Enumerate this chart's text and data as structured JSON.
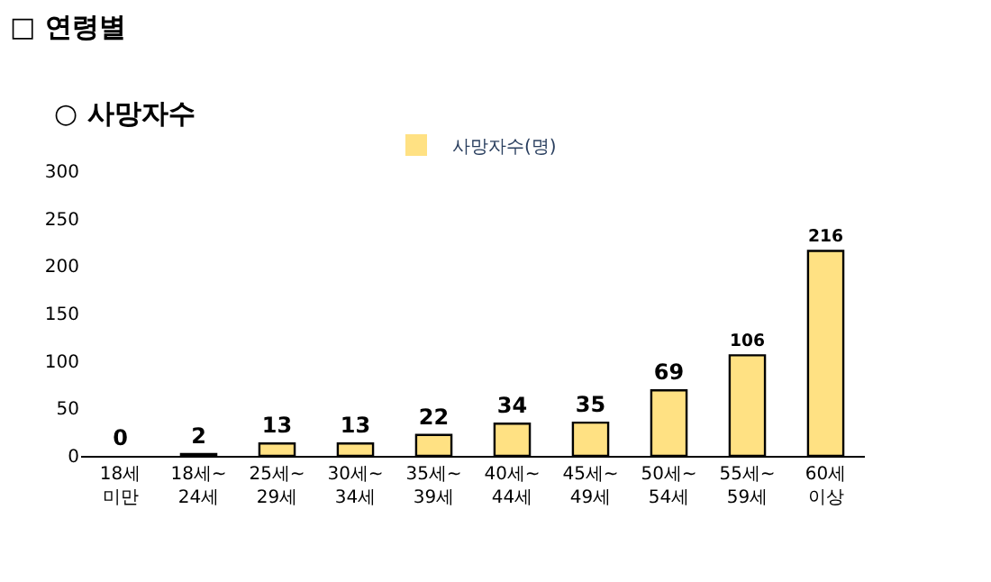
{
  "chart_data": {
    "type": "bar",
    "title": "□ 연령별",
    "subtitle": "○ 사망자수",
    "categories": [
      "18세\n미만",
      "18세~\n24세",
      "25세~\n29세",
      "30세~\n34세",
      "35세~\n39세",
      "40세~\n44세",
      "45세~\n49세",
      "50세~\n54세",
      "55세~\n59세",
      "60세\n이상"
    ],
    "series": [
      {
        "name": "사망자수(명)",
        "color": "#ffe183",
        "values": [
          0,
          2,
          13,
          13,
          22,
          34,
          35,
          69,
          106,
          216
        ]
      }
    ],
    "ylim": [
      0,
      300
    ],
    "yticks": [
      0,
      50,
      100,
      150,
      200,
      250,
      300
    ],
    "legend": "top",
    "data_labels": true
  }
}
